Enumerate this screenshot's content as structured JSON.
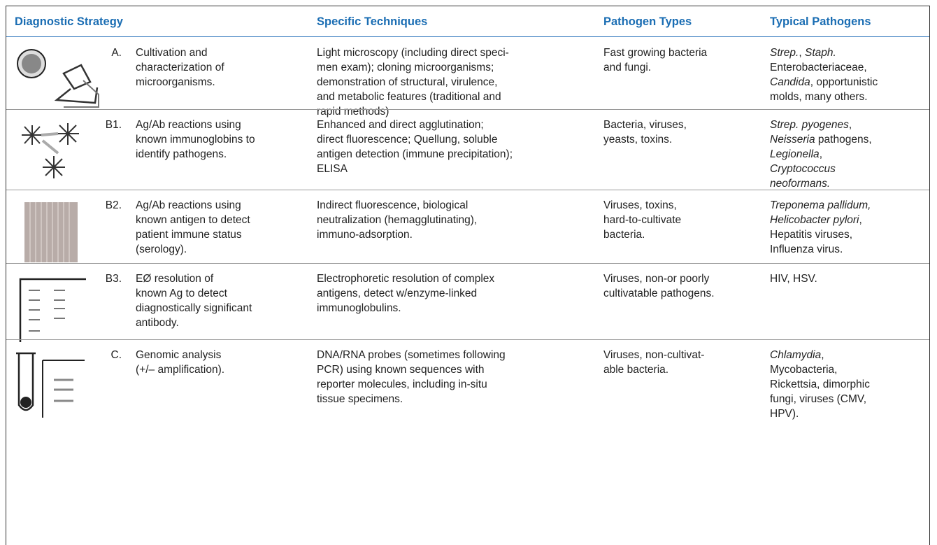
{
  "header": [
    "Diagnostic Strategy",
    "Specific Techniques",
    "Pathogen Types",
    "Typical Pathogens"
  ],
  "rows": [
    {
      "label": "A.",
      "strategy": [
        "Cultivation and",
        "characterization of",
        "microorganisms."
      ],
      "techniques": [
        "Light microscopy (including direct speci-",
        "men exam); cloning microorganisms;",
        "demonstration of structural, virulence,",
        "and metabolic features (traditional and",
        "rapid methods)"
      ],
      "pathogen_types": [
        "Fast growing bacteria",
        "and fungi."
      ],
      "typical_pathogens": [
        [
          {
            "text": "Strep.",
            "italic": true
          },
          {
            "text": ", "
          },
          {
            "text": "Staph.",
            "italic": true
          }
        ],
        [
          {
            "text": "Enterobacteriaceae,"
          }
        ],
        [
          {
            "text": "Candida",
            "italic": true
          },
          {
            "text": ", opportunistic"
          }
        ],
        [
          {
            "text": "molds, many others."
          }
        ]
      ]
    },
    {
      "label": "B1.",
      "strategy": [
        "Ag/Ab reactions using",
        "known immunoglobins to",
        "identify pathogens."
      ],
      "techniques": [
        "Enhanced and direct agglutination;",
        "direct fluorescence; Quellung, soluble",
        "antigen detection (immune precipitation);",
        "ELISA"
      ],
      "pathogen_types": [
        "Bacteria, viruses,",
        "yeasts, toxins."
      ],
      "typical_pathogens": [
        [
          {
            "text": "Strep. pyogenes",
            "italic": true
          },
          {
            "text": ","
          }
        ],
        [
          {
            "text": "Neisseria",
            "italic": true
          },
          {
            "text": " pathogens,"
          }
        ],
        [
          {
            "text": "Legionella",
            "italic": true
          },
          {
            "text": ","
          }
        ],
        [
          {
            "text": "Cryptococcus",
            "italic": true
          }
        ],
        [
          {
            "text": "neoformans.",
            "italic": true
          }
        ]
      ]
    },
    {
      "label": "B2.",
      "strategy": [
        "Ag/Ab reactions using",
        "known antigen to detect",
        "patient immune status",
        "(serology)."
      ],
      "techniques": [
        "Indirect fluorescence, biological",
        "neutralization (hemagglutinating),",
        "immuno-adsorption."
      ],
      "pathogen_types": [
        "Viruses, toxins,",
        "hard-to-cultivate",
        "bacteria."
      ],
      "typical_pathogens": [
        [
          {
            "text": "Treponema pallidum,",
            "italic": true
          }
        ],
        [
          {
            "text": "Helicobacter pylori",
            "italic": true
          },
          {
            "text": ","
          }
        ],
        [
          {
            "text": "Hepatitis viruses,"
          }
        ],
        [
          {
            "text": "Influenza virus."
          }
        ]
      ]
    },
    {
      "label": "B3.",
      "strategy": [
        "EØ resolution of",
        "known Ag to detect",
        "diagnostically significant",
        "antibody."
      ],
      "techniques": [
        "Electrophoretic resolution of complex",
        "antigens, detect w/enzyme-linked",
        "immunoglobulins."
      ],
      "pathogen_types": [
        "Viruses, non-or poorly",
        "cultivatable pathogens."
      ],
      "typical_pathogens": [
        [
          {
            "text": "HIV, HSV."
          }
        ]
      ]
    },
    {
      "label": "C.",
      "strategy": [
        "Genomic analysis",
        "(+/– amplification)."
      ],
      "techniques": [
        "DNA/RNA probes (sometimes following",
        "PCR) using known sequences with",
        "reporter molecules, including in-situ",
        "tissue specimens."
      ],
      "pathogen_types": [
        "Viruses, non-cultivat-",
        "able bacteria."
      ],
      "typical_pathogens": [
        [
          {
            "text": "Chlamydia",
            "italic": true
          },
          {
            "text": ","
          }
        ],
        [
          {
            "text": "Mycobacteria,"
          }
        ],
        [
          {
            "text": "Rickettsia, dimorphic"
          }
        ],
        [
          {
            "text": "fungi, viruses (CMV,"
          }
        ],
        [
          {
            "text": "HPV)."
          }
        ]
      ]
    }
  ]
}
